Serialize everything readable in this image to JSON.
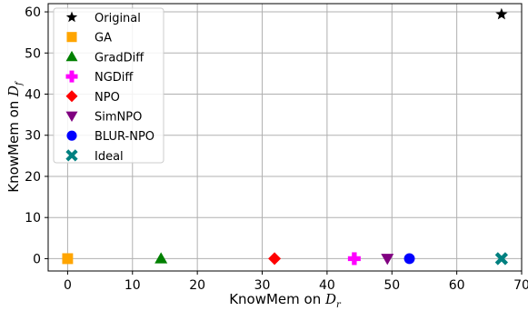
{
  "chart_data": {
    "type": "scatter",
    "xlabel": {
      "prefix": "KnowMem on ",
      "script": "D",
      "sub": "r"
    },
    "ylabel": {
      "prefix": "KnowMem on ",
      "script": "D",
      "sub": "f"
    },
    "xlim": [
      -3,
      70
    ],
    "ylim": [
      -3,
      62
    ],
    "xticks": [
      0,
      10,
      20,
      30,
      40,
      50,
      60,
      70
    ],
    "yticks": [
      0,
      10,
      20,
      30,
      40,
      50,
      60
    ],
    "grid": true,
    "legend_position": "top-left",
    "series": [
      {
        "name": "Original",
        "marker": "star",
        "color": "#000000",
        "x": 66.9,
        "y": 59.4
      },
      {
        "name": "GA",
        "marker": "square",
        "color": "#ffa500",
        "x": 0.0,
        "y": 0.0
      },
      {
        "name": "GradDiff",
        "marker": "triangle-up",
        "color": "#008000",
        "x": 14.4,
        "y": 0.0
      },
      {
        "name": "NGDiff",
        "marker": "plus",
        "color": "#ff00ff",
        "x": 44.2,
        "y": 0.0
      },
      {
        "name": "NPO",
        "marker": "diamond",
        "color": "#ff0000",
        "x": 31.9,
        "y": 0.0
      },
      {
        "name": "SimNPO",
        "marker": "triangle-down",
        "color": "#800080",
        "x": 49.3,
        "y": 0.0
      },
      {
        "name": "BLUR-NPO",
        "marker": "circle",
        "color": "#0000ff",
        "x": 52.7,
        "y": 0.0
      },
      {
        "name": "Ideal",
        "marker": "x",
        "color": "#008080",
        "x": 66.9,
        "y": 0.0
      }
    ]
  }
}
